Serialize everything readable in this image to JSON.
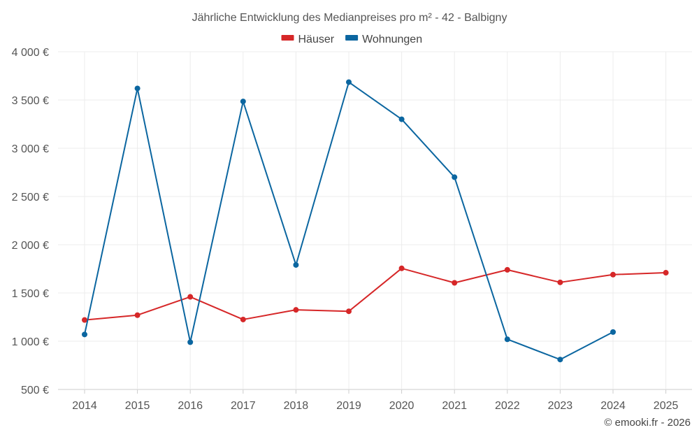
{
  "chart_data": {
    "type": "line",
    "title": "Jährliche Entwicklung des Medianpreises pro m² - 42 - Balbigny",
    "x": [
      "2014",
      "2015",
      "2016",
      "2017",
      "2018",
      "2019",
      "2020",
      "2021",
      "2022",
      "2023",
      "2024",
      "2025"
    ],
    "y_ticks": [
      "500 €",
      "1 000 €",
      "1 500 €",
      "2 000 €",
      "2 500 €",
      "3 000 €",
      "3 500 €",
      "4 000 €"
    ],
    "ylim": [
      500,
      4000
    ],
    "grid": true,
    "legend_position": "top-center",
    "series": [
      {
        "name": "Häuser",
        "color": "#d62728",
        "values": [
          1220,
          1270,
          1460,
          1225,
          1325,
          1310,
          1755,
          1605,
          1740,
          1610,
          1690,
          1710
        ]
      },
      {
        "name": "Wohnungen",
        "color": "#0b66a0",
        "values": [
          1070,
          3620,
          990,
          3485,
          1790,
          3685,
          3300,
          2700,
          1020,
          810,
          1095,
          null
        ]
      }
    ],
    "credit": "© emooki.fr - 2026"
  }
}
